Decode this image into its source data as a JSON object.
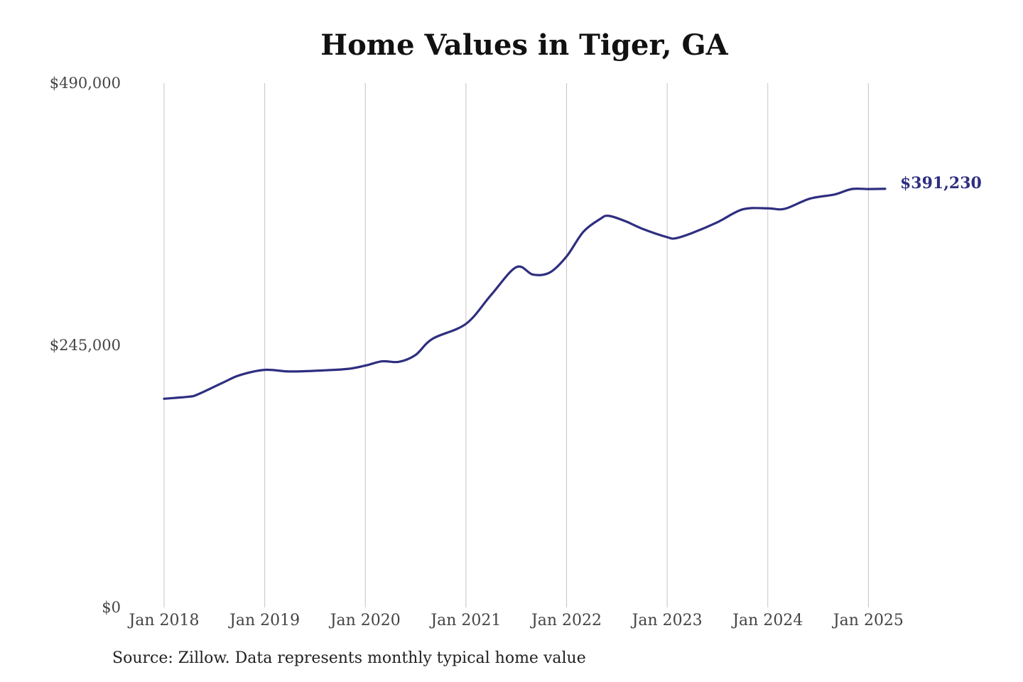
{
  "chart_data": {
    "type": "line",
    "title": "Home Values in Tiger, GA",
    "xlabel": "",
    "ylabel": "",
    "ylim": [
      0,
      490000
    ],
    "xlim": [
      "2018-01",
      "2025-03"
    ],
    "y_ticks": [
      {
        "value": 0,
        "label": "$0"
      },
      {
        "value": 245000,
        "label": "$245,000"
      },
      {
        "value": 490000,
        "label": "$490,000"
      }
    ],
    "x_ticks": [
      {
        "value": "2018-01",
        "label": "Jan 2018"
      },
      {
        "value": "2019-01",
        "label": "Jan 2019"
      },
      {
        "value": "2020-01",
        "label": "Jan 2020"
      },
      {
        "value": "2021-01",
        "label": "Jan 2021"
      },
      {
        "value": "2022-01",
        "label": "Jan 2022"
      },
      {
        "value": "2023-01",
        "label": "Jan 2023"
      },
      {
        "value": "2024-01",
        "label": "Jan 2024"
      },
      {
        "value": "2025-01",
        "label": "Jan 2025"
      }
    ],
    "grid": "vertical",
    "series": [
      {
        "color": "#2e2e80",
        "end_label": "$391,230",
        "points": [
          {
            "x": "2018-01",
            "y": 195000
          },
          {
            "x": "2018-04",
            "y": 197000
          },
          {
            "x": "2018-05",
            "y": 199000
          },
          {
            "x": "2018-08",
            "y": 210000
          },
          {
            "x": "2018-10",
            "y": 217000
          },
          {
            "x": "2019-01",
            "y": 222000
          },
          {
            "x": "2019-04",
            "y": 220500
          },
          {
            "x": "2019-08",
            "y": 221500
          },
          {
            "x": "2019-11",
            "y": 223000
          },
          {
            "x": "2020-01",
            "y": 226000
          },
          {
            "x": "2020-03",
            "y": 230000
          },
          {
            "x": "2020-05",
            "y": 229500
          },
          {
            "x": "2020-07",
            "y": 236000
          },
          {
            "x": "2020-09",
            "y": 251000
          },
          {
            "x": "2021-01",
            "y": 265000
          },
          {
            "x": "2021-04",
            "y": 292000
          },
          {
            "x": "2021-07",
            "y": 318000
          },
          {
            "x": "2021-09",
            "y": 311000
          },
          {
            "x": "2021-11",
            "y": 313000
          },
          {
            "x": "2022-01",
            "y": 328000
          },
          {
            "x": "2022-03",
            "y": 351000
          },
          {
            "x": "2022-05",
            "y": 363000
          },
          {
            "x": "2022-06",
            "y": 366000
          },
          {
            "x": "2022-08",
            "y": 361000
          },
          {
            "x": "2022-10",
            "y": 354000
          },
          {
            "x": "2023-01",
            "y": 346000
          },
          {
            "x": "2023-02",
            "y": 345000
          },
          {
            "x": "2023-04",
            "y": 350000
          },
          {
            "x": "2023-07",
            "y": 360000
          },
          {
            "x": "2023-10",
            "y": 372000
          },
          {
            "x": "2024-01",
            "y": 373000
          },
          {
            "x": "2024-03",
            "y": 372500
          },
          {
            "x": "2024-06",
            "y": 382000
          },
          {
            "x": "2024-09",
            "y": 386000
          },
          {
            "x": "2024-11",
            "y": 391000
          },
          {
            "x": "2025-01",
            "y": 391000
          },
          {
            "x": "2025-03",
            "y": 391230
          }
        ]
      }
    ],
    "source": "Source: Zillow. Data represents monthly typical home value"
  }
}
